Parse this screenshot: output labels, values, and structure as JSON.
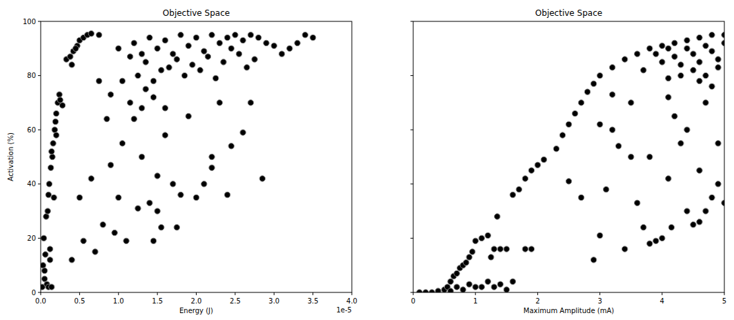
{
  "chart_data": [
    {
      "type": "scatter",
      "title": "Objective Space",
      "x_label": "Energy (J)",
      "y_label": "Activation (%)",
      "x_offset_text": "1e-5",
      "xlim": [
        0,
        4e-05
      ],
      "ylim": [
        0,
        100
      ],
      "xticks": [
        {
          "value": 0,
          "label": "0.0"
        },
        {
          "value": 5e-06,
          "label": "0.5"
        },
        {
          "value": 1e-05,
          "label": "1.0"
        },
        {
          "value": 1.5e-05,
          "label": "1.5"
        },
        {
          "value": 2e-05,
          "label": "2.0"
        },
        {
          "value": 2.5e-05,
          "label": "2.5"
        },
        {
          "value": 3e-05,
          "label": "3.0"
        },
        {
          "value": 3.5e-05,
          "label": "3.5"
        },
        {
          "value": 4e-05,
          "label": "4.0"
        }
      ],
      "yticks": [
        0,
        20,
        40,
        60,
        80,
        100
      ],
      "color": "#000000",
      "marker": "circle",
      "grid": false,
      "x": [
        2e-07,
        5e-07,
        3e-07,
        6e-07,
        8e-07,
        1e-06,
        4e-07,
        7e-07,
        9e-07,
        1e-06,
        1.2e-06,
        1.4e-06,
        5e-07,
        1.1e-06,
        1.3e-06,
        1.5e-06,
        1.6e-06,
        1.8e-06,
        2e-06,
        2.2e-06,
        2.4e-06,
        2e-06,
        1.7e-06,
        2.5e-06,
        2.8e-06,
        1.4e-06,
        1.9e-06,
        1.2e-06,
        3.3e-06,
        3.8e-06,
        4.2e-06,
        4.7e-06,
        5e-06,
        5.5e-06,
        6e-06,
        6.5e-06,
        4.5e-06,
        4e-06,
        7.5e-06,
        1e-05,
        1.2e-05,
        1.3e-05,
        1.4e-05,
        1.5e-05,
        1.6e-05,
        1.7e-05,
        1.8e-05,
        1.9e-05,
        2e-05,
        2.1e-05,
        2.2e-05,
        2.3e-05,
        2.4e-05,
        2.5e-05,
        2.6e-05,
        2.7e-05,
        2.8e-05,
        2.9e-05,
        3e-05,
        3.2e-05,
        3.4e-05,
        3.5e-05,
        1.35e-05,
        1.55e-05,
        1.75e-05,
        1.95e-05,
        2.15e-05,
        2.35e-05,
        2.55e-05,
        1.25e-05,
        1.45e-05,
        1.65e-05,
        1.85e-05,
        2.05e-05,
        2.25e-05,
        2.65e-05,
        2.45e-05,
        1.15e-05,
        3.1e-05,
        3.3e-05,
        2.75e-05,
        5e-06,
        5.5e-06,
        6.5e-06,
        7e-06,
        8e-06,
        9e-06,
        9.5e-06,
        1e-05,
        1.05e-05,
        1.1e-05,
        1.2e-05,
        1.25e-05,
        1.3e-05,
        1.35e-05,
        1.4e-05,
        1.45e-05,
        1.5e-05,
        1.55e-05,
        1.6e-05,
        1.7e-05,
        1.75e-05,
        1.8e-05,
        1.9e-05,
        2e-05,
        2.1e-05,
        2.2e-05,
        2.3e-05,
        2.4e-05,
        2.45e-05,
        2.6e-05,
        2.7e-05,
        2.85e-05,
        1.15e-05,
        1.3e-05,
        1.45e-05,
        8.5e-06,
        7.5e-06,
        9e-06,
        1.05e-05,
        4e-06,
        2.2e-05,
        1.6e-05,
        1.5e-05
      ],
      "values": [
        2,
        5,
        10,
        14,
        3,
        2,
        20,
        28,
        30,
        36,
        16,
        2,
        8,
        40,
        46,
        50,
        55,
        60,
        66,
        70,
        73,
        58,
        35,
        71,
        69,
        52,
        63,
        12,
        86,
        87,
        89,
        91,
        93,
        94,
        95,
        95.5,
        90,
        84,
        95,
        90,
        92,
        88,
        94,
        90,
        93,
        88,
        95,
        91,
        94,
        89,
        95,
        92,
        94,
        95,
        93,
        95,
        94,
        92,
        91,
        90,
        95,
        94,
        85,
        82,
        86,
        84,
        87,
        85,
        88,
        80,
        78,
        83,
        80,
        82,
        79,
        83,
        90,
        87,
        88,
        92,
        86,
        35,
        19,
        42,
        15,
        25,
        47,
        22,
        35,
        55,
        19,
        64,
        31,
        50,
        75,
        33,
        19,
        43,
        24,
        58,
        40,
        24,
        36,
        65,
        35,
        40,
        50,
        70,
        36,
        54,
        59,
        70,
        42,
        70,
        68,
        72,
        64,
        78,
        73,
        78,
        12,
        46,
        68,
        30
      ]
    },
    {
      "type": "scatter",
      "title": "Objective Space",
      "x_label": "Maximum Amplitude (mA)",
      "xlim": [
        0,
        5
      ],
      "ylim": [
        0,
        100
      ],
      "xticks": [
        0,
        1,
        2,
        3,
        4,
        5
      ],
      "yticks": [
        0,
        20,
        40,
        60,
        80,
        100
      ],
      "tick_labels": "x",
      "color": "#000000",
      "marker": "circle",
      "grid": false,
      "x": [
        0.1,
        0.2,
        0.3,
        0.4,
        0.5,
        0.55,
        0.6,
        0.65,
        0.7,
        0.75,
        0.8,
        0.85,
        0.9,
        0.95,
        1.0,
        0.7,
        0.8,
        0.9,
        1.0,
        1.1,
        1.2,
        1.3,
        1.4,
        1.5,
        1.6,
        1.1,
        1.2,
        1.3,
        1.35,
        1.4,
        1.5,
        1.8,
        1.9,
        1.25,
        0.6,
        1.6,
        1.7,
        1.8,
        1.9,
        2.0,
        2.1,
        2.3,
        2.4,
        2.5,
        2.6,
        2.7,
        2.8,
        2.9,
        3.0,
        3.2,
        3.4,
        3.6,
        3.8,
        4.0,
        4.2,
        4.4,
        4.6,
        4.8,
        5.0,
        2.5,
        2.7,
        3.9,
        4.0,
        4.1,
        4.2,
        4.3,
        4.4,
        4.5,
        4.6,
        4.7,
        4.8,
        4.9,
        5.0,
        4.3,
        4.5,
        4.7,
        4.9,
        4.1,
        4.6,
        4.8,
        3.7,
        2.9,
        3.0,
        3.1,
        3.2,
        3.3,
        3.4,
        3.5,
        3.6,
        3.7,
        3.8,
        3.9,
        4.0,
        4.1,
        4.15,
        4.3,
        4.4,
        4.5,
        4.6,
        4.7,
        4.8,
        4.9,
        5.0,
        4.2,
        4.4,
        3.5,
        3.2,
        3.0,
        4.6,
        4.9,
        4.1,
        3.8,
        4.7
      ],
      "values": [
        0,
        0,
        0,
        0.5,
        1,
        2,
        4,
        6,
        7,
        9,
        10,
        11,
        13,
        15,
        19,
        2,
        1,
        3,
        2,
        2,
        4,
        2,
        3,
        1,
        4,
        20,
        21,
        16,
        28,
        16,
        16,
        16,
        16,
        13,
        0.5,
        36,
        38,
        42,
        45,
        47,
        49,
        53,
        58,
        62,
        66,
        70,
        74,
        77,
        80,
        83,
        86,
        88,
        90,
        91,
        92,
        93,
        94,
        95,
        95,
        41,
        35,
        88,
        85,
        90,
        87,
        84,
        90,
        88,
        85,
        91,
        89,
        86,
        92,
        80,
        82,
        80,
        83,
        79,
        78,
        76,
        82,
        12,
        21,
        38,
        60,
        54,
        16,
        50,
        33,
        24,
        18,
        19,
        20,
        42,
        24,
        55,
        30,
        25,
        26,
        70,
        35,
        40,
        33,
        65,
        60,
        70,
        73,
        62,
        45,
        55,
        72,
        50,
        30
      ]
    }
  ]
}
